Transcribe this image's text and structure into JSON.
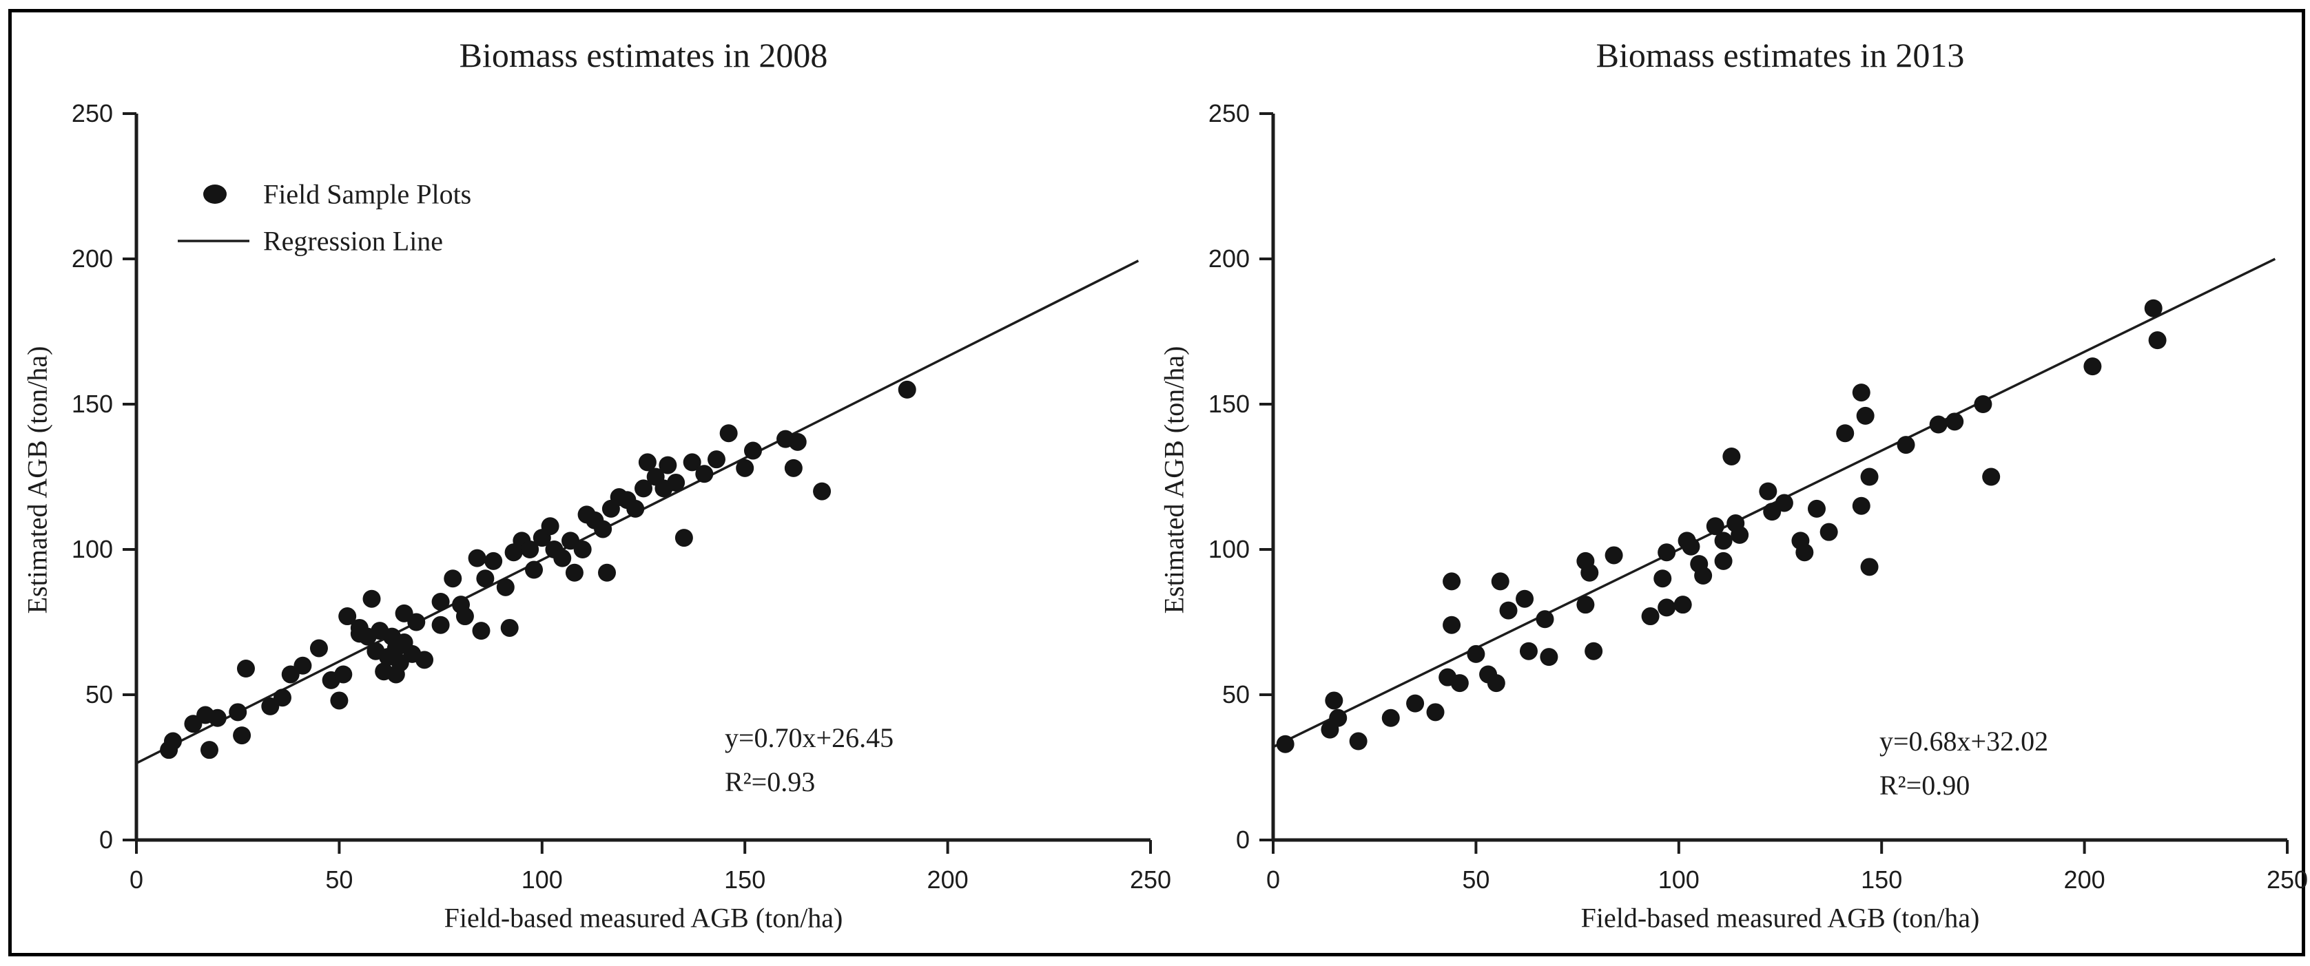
{
  "figure": {
    "border_color": "#000000",
    "background_color": "#ffffff",
    "ink_color": "#1c1c1c",
    "marker_color": "#141414"
  },
  "chart_data": [
    {
      "type": "scatter",
      "title": "Biomass estimates in 2008",
      "xlabel": "Field-based measured AGB (ton/ha)",
      "ylabel": "Estimated AGB (ton/ha)",
      "xlim": [
        0,
        250
      ],
      "ylim": [
        0,
        250
      ],
      "x_ticks": [
        0,
        50,
        100,
        150,
        200,
        250
      ],
      "y_ticks": [
        0,
        50,
        100,
        150,
        200,
        250
      ],
      "grid": false,
      "legend_position": "top-left",
      "legend": {
        "items": [
          {
            "marker": "filled-circle",
            "label": "Field Sample Plots"
          },
          {
            "marker": "line",
            "label": "Regression Line"
          }
        ]
      },
      "annotation": {
        "line1": "y=0.70x+26.45",
        "line2": "R²=0.93"
      },
      "regression": {
        "slope": 0.7,
        "intercept": 26.45,
        "x_start": 0,
        "x_end": 247
      },
      "series": [
        {
          "name": "Field Sample Plots",
          "points": [
            [
              8,
              31
            ],
            [
              9,
              34
            ],
            [
              14,
              40
            ],
            [
              17,
              43
            ],
            [
              18,
              31
            ],
            [
              20,
              42
            ],
            [
              25,
              44
            ],
            [
              26,
              36
            ],
            [
              27,
              59
            ],
            [
              33,
              46
            ],
            [
              36,
              49
            ],
            [
              38,
              57
            ],
            [
              41,
              60
            ],
            [
              45,
              66
            ],
            [
              48,
              55
            ],
            [
              50,
              48
            ],
            [
              51,
              57
            ],
            [
              52,
              77
            ],
            [
              55,
              71
            ],
            [
              58,
              83
            ],
            [
              55,
              73
            ],
            [
              57,
              70
            ],
            [
              59,
              65
            ],
            [
              60,
              72
            ],
            [
              61,
              58
            ],
            [
              62,
              63
            ],
            [
              63,
              70
            ],
            [
              64,
              57
            ],
            [
              64,
              66
            ],
            [
              65,
              61
            ],
            [
              66,
              78
            ],
            [
              66,
              68
            ],
            [
              68,
              64
            ],
            [
              69,
              75
            ],
            [
              71,
              62
            ],
            [
              75,
              82
            ],
            [
              75,
              74
            ],
            [
              78,
              90
            ],
            [
              80,
              81
            ],
            [
              81,
              77
            ],
            [
              84,
              97
            ],
            [
              85,
              72
            ],
            [
              86,
              90
            ],
            [
              88,
              96
            ],
            [
              91,
              87
            ],
            [
              92,
              73
            ],
            [
              93,
              99
            ],
            [
              95,
              103
            ],
            [
              97,
              100
            ],
            [
              98,
              93
            ],
            [
              100,
              104
            ],
            [
              102,
              108
            ],
            [
              103,
              100
            ],
            [
              105,
              97
            ],
            [
              107,
              103
            ],
            [
              108,
              92
            ],
            [
              110,
              100
            ],
            [
              111,
              112
            ],
            [
              113,
              110
            ],
            [
              115,
              107
            ],
            [
              116,
              92
            ],
            [
              117,
              114
            ],
            [
              119,
              118
            ],
            [
              121,
              117
            ],
            [
              123,
              114
            ],
            [
              125,
              121
            ],
            [
              126,
              130
            ],
            [
              128,
              125
            ],
            [
              130,
              121
            ],
            [
              131,
              129
            ],
            [
              133,
              123
            ],
            [
              135,
              104
            ],
            [
              137,
              130
            ],
            [
              140,
              126
            ],
            [
              143,
              131
            ],
            [
              146,
              140
            ],
            [
              150,
              128
            ],
            [
              152,
              134
            ],
            [
              160,
              138
            ],
            [
              163,
              137
            ],
            [
              162,
              128
            ],
            [
              169,
              120
            ],
            [
              190,
              155
            ]
          ]
        }
      ]
    },
    {
      "type": "scatter",
      "title": "Biomass estimates in 2013",
      "xlabel": "Field-based measured AGB (ton/ha)",
      "ylabel": "Estimated AGB (ton/ha)",
      "xlim": [
        0,
        250
      ],
      "ylim": [
        0,
        250
      ],
      "x_ticks": [
        0,
        50,
        100,
        150,
        200,
        250
      ],
      "y_ticks": [
        0,
        50,
        100,
        150,
        200,
        250
      ],
      "grid": false,
      "legend_position": "none",
      "legend": {
        "items": []
      },
      "annotation": {
        "line1": "y=0.68x+32.02",
        "line2": "R²=0.90"
      },
      "regression": {
        "slope": 0.68,
        "intercept": 32.02,
        "x_start": 0,
        "x_end": 247
      },
      "series": [
        {
          "name": "Field Sample Plots",
          "points": [
            [
              3,
              33
            ],
            [
              14,
              38
            ],
            [
              15,
              48
            ],
            [
              16,
              42
            ],
            [
              21,
              34
            ],
            [
              29,
              42
            ],
            [
              35,
              47
            ],
            [
              40,
              44
            ],
            [
              43,
              56
            ],
            [
              44,
              74
            ],
            [
              44,
              89
            ],
            [
              46,
              54
            ],
            [
              50,
              64
            ],
            [
              53,
              57
            ],
            [
              55,
              54
            ],
            [
              56,
              89
            ],
            [
              58,
              79
            ],
            [
              62,
              83
            ],
            [
              63,
              65
            ],
            [
              67,
              76
            ],
            [
              68,
              63
            ],
            [
              77,
              96
            ],
            [
              78,
              92
            ],
            [
              77,
              81
            ],
            [
              79,
              65
            ],
            [
              84,
              98
            ],
            [
              93,
              77
            ],
            [
              96,
              90
            ],
            [
              97,
              80
            ],
            [
              97,
              99
            ],
            [
              101,
              81
            ],
            [
              102,
              103
            ],
            [
              103,
              101
            ],
            [
              105,
              95
            ],
            [
              106,
              91
            ],
            [
              109,
              108
            ],
            [
              111,
              96
            ],
            [
              111,
              103
            ],
            [
              113,
              132
            ],
            [
              114,
              109
            ],
            [
              115,
              105
            ],
            [
              122,
              120
            ],
            [
              123,
              113
            ],
            [
              126,
              116
            ],
            [
              130,
              103
            ],
            [
              131,
              99
            ],
            [
              134,
              114
            ],
            [
              137,
              106
            ],
            [
              141,
              140
            ],
            [
              145,
              154
            ],
            [
              146,
              146
            ],
            [
              145,
              115
            ],
            [
              147,
              125
            ],
            [
              147,
              94
            ],
            [
              156,
              136
            ],
            [
              164,
              143
            ],
            [
              168,
              144
            ],
            [
              175,
              150
            ],
            [
              177,
              125
            ],
            [
              202,
              163
            ],
            [
              217,
              183
            ],
            [
              218,
              172
            ]
          ]
        }
      ]
    }
  ]
}
